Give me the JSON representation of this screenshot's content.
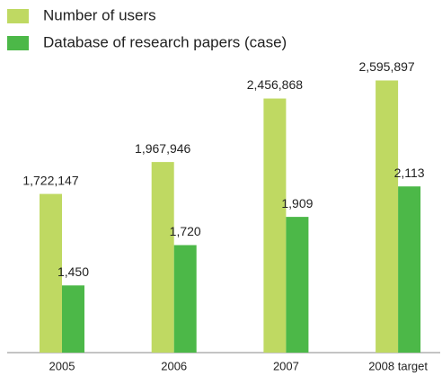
{
  "chart_data": {
    "type": "bar",
    "categories": [
      "2005",
      "2006",
      "2007",
      "2008 target"
    ],
    "series": [
      {
        "name": "Number of users",
        "color": "#bfd962",
        "values": [
          1722147,
          1967946,
          2456868,
          2595897
        ],
        "value_labels": [
          "1,722,147",
          "1,967,946",
          "2,456,868",
          "2,595,897"
        ]
      },
      {
        "name": "Database of research papers (case)",
        "color": "#4cb848",
        "axis": "y2",
        "values": [
          1450,
          1720,
          1909,
          2113
        ],
        "value_labels": [
          "1,450",
          "1,720",
          "1,909",
          "2,113"
        ]
      }
    ],
    "ylim": [
      500000,
      2800000
    ],
    "y2lim": [
      1000,
      3000
    ],
    "grid": false
  }
}
